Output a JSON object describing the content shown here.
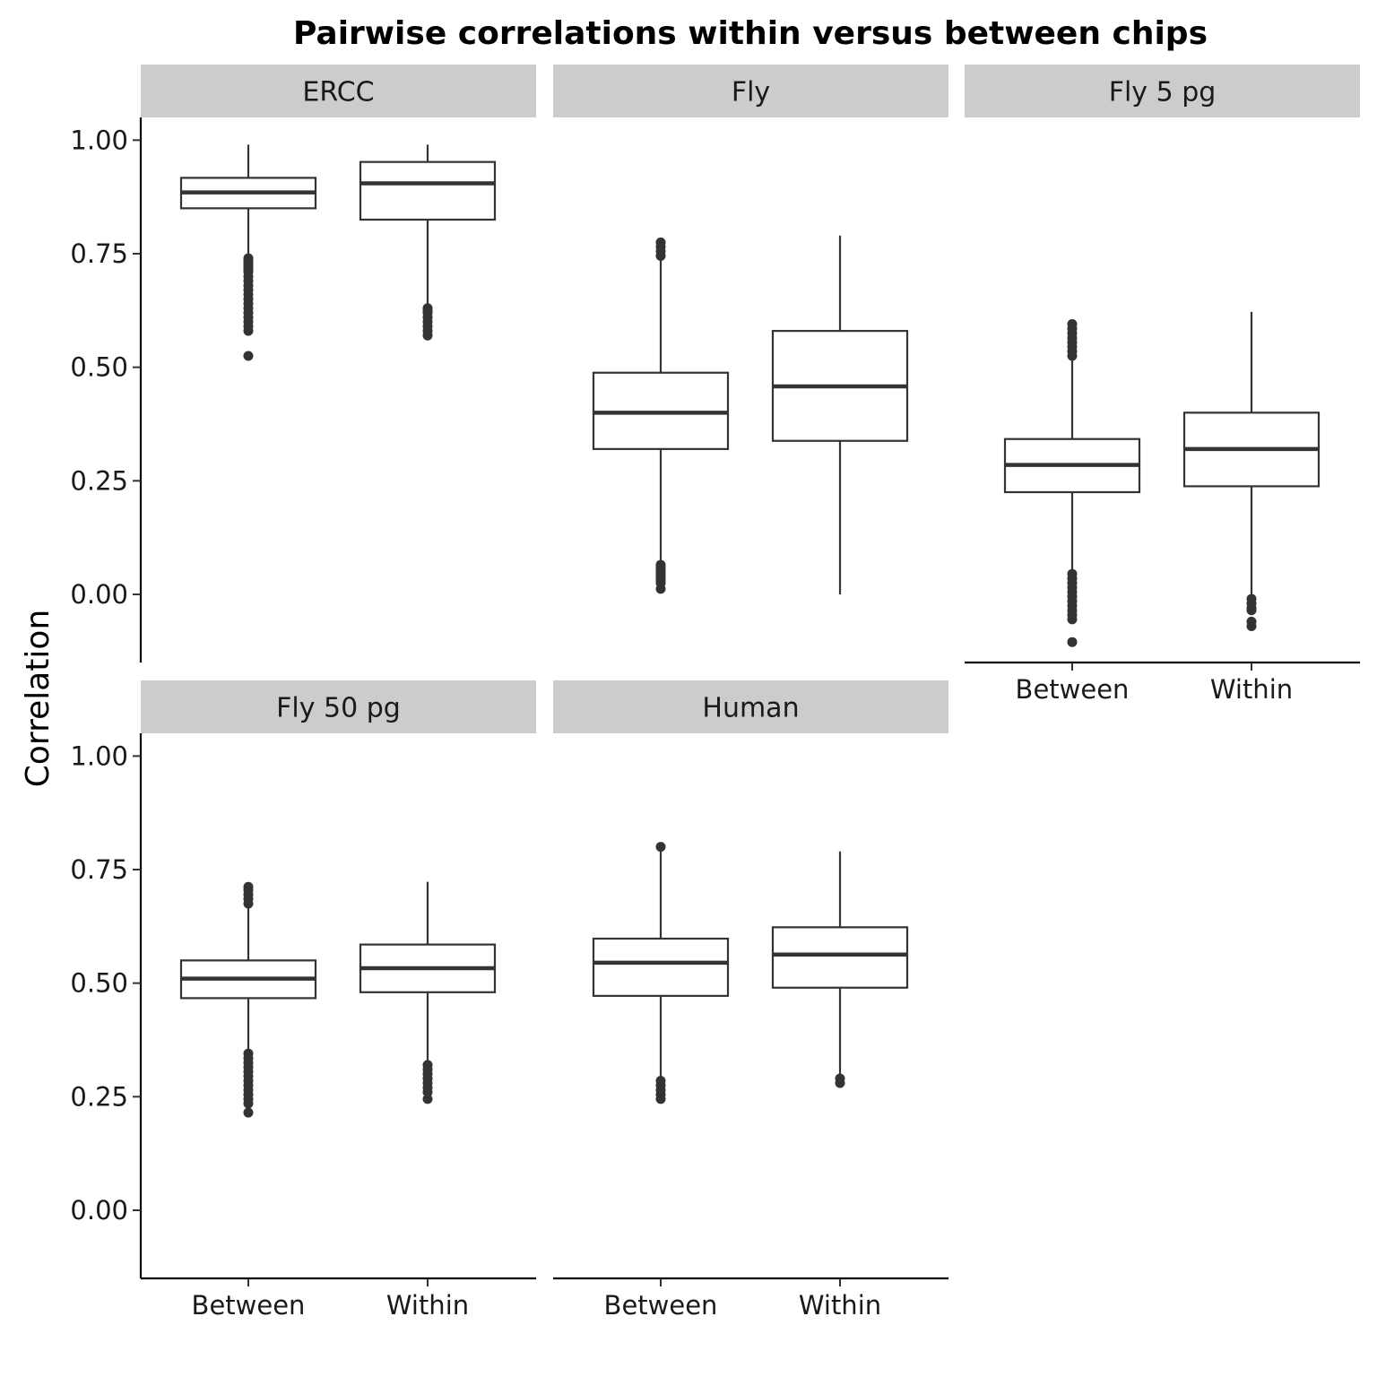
{
  "chart_data": {
    "type": "boxplot",
    "title": "Pairwise correlations within versus between chips",
    "ylabel": "Correlation",
    "xlabel": "",
    "ylim": [
      -0.15,
      1.05
    ],
    "y_ticks": [
      "1.00",
      "0.75",
      "0.50",
      "0.25",
      "0.00"
    ],
    "y_tick_values": [
      1.0,
      0.75,
      0.5,
      0.25,
      0.0
    ],
    "categories": [
      "Between",
      "Within"
    ],
    "grid": false,
    "colors": {
      "box_stroke": "#333333",
      "strip_fill": "#cccccc",
      "axis": "#000000",
      "text": "#1a1a1a"
    },
    "panels": [
      {
        "name": "ERCC",
        "boxes": [
          {
            "category": "Between",
            "whisker_low": 0.75,
            "q1": 0.85,
            "median": 0.885,
            "q3": 0.917,
            "whisker_high": 0.99,
            "outliers": [
              0.74,
              0.735,
              0.73,
              0.725,
              0.72,
              0.715,
              0.71,
              0.7,
              0.69,
              0.68,
              0.67,
              0.66,
              0.65,
              0.64,
              0.63,
              0.62,
              0.61,
              0.6,
              0.59,
              0.58,
              0.525
            ]
          },
          {
            "category": "Within",
            "whisker_low": 0.635,
            "q1": 0.825,
            "median": 0.905,
            "q3": 0.952,
            "whisker_high": 0.99,
            "outliers": [
              0.63,
              0.625,
              0.62,
              0.61,
              0.6,
              0.59,
              0.58,
              0.57
            ]
          }
        ]
      },
      {
        "name": "Fly",
        "boxes": [
          {
            "category": "Between",
            "whisker_low": 0.07,
            "q1": 0.32,
            "median": 0.4,
            "q3": 0.488,
            "whisker_high": 0.74,
            "outliers": [
              0.775,
              0.765,
              0.755,
              0.745,
              0.065,
              0.06,
              0.055,
              0.05,
              0.045,
              0.04,
              0.035,
              0.03,
              0.025,
              0.012
            ]
          },
          {
            "category": "Within",
            "whisker_low": 0.0,
            "q1": 0.338,
            "median": 0.458,
            "q3": 0.58,
            "whisker_high": 0.79,
            "outliers": []
          }
        ]
      },
      {
        "name": "Fly 5 pg",
        "boxes": [
          {
            "category": "Between",
            "whisker_low": 0.05,
            "q1": 0.225,
            "median": 0.285,
            "q3": 0.342,
            "whisker_high": 0.515,
            "outliers": [
              0.595,
              0.585,
              0.575,
              0.565,
              0.555,
              0.545,
              0.535,
              0.525,
              0.045,
              0.035,
              0.025,
              0.015,
              0.005,
              -0.005,
              -0.015,
              -0.025,
              -0.035,
              -0.045,
              -0.055,
              -0.105
            ]
          },
          {
            "category": "Within",
            "whisker_low": -0.005,
            "q1": 0.238,
            "median": 0.32,
            "q3": 0.4,
            "whisker_high": 0.622,
            "outliers": [
              -0.01,
              -0.02,
              -0.03,
              -0.035,
              -0.06,
              -0.07
            ]
          }
        ]
      },
      {
        "name": "Fly 50 pg",
        "boxes": [
          {
            "category": "Between",
            "whisker_low": 0.35,
            "q1": 0.467,
            "median": 0.51,
            "q3": 0.55,
            "whisker_high": 0.665,
            "outliers": [
              0.712,
              0.705,
              0.695,
              0.685,
              0.675,
              0.345,
              0.335,
              0.325,
              0.315,
              0.305,
              0.295,
              0.285,
              0.275,
              0.265,
              0.255,
              0.245,
              0.235,
              0.215
            ]
          },
          {
            "category": "Within",
            "whisker_low": 0.325,
            "q1": 0.48,
            "median": 0.533,
            "q3": 0.585,
            "whisker_high": 0.723,
            "outliers": [
              0.32,
              0.31,
              0.3,
              0.29,
              0.28,
              0.27,
              0.26,
              0.245
            ]
          }
        ]
      },
      {
        "name": "Human",
        "boxes": [
          {
            "category": "Between",
            "whisker_low": 0.29,
            "q1": 0.472,
            "median": 0.545,
            "q3": 0.598,
            "whisker_high": 0.79,
            "outliers": [
              0.8,
              0.285,
              0.275,
              0.265,
              0.255,
              0.245
            ]
          },
          {
            "category": "Within",
            "whisker_low": 0.295,
            "q1": 0.49,
            "median": 0.563,
            "q3": 0.623,
            "whisker_high": 0.79,
            "outliers": [
              0.29,
              0.28
            ]
          }
        ]
      }
    ]
  }
}
